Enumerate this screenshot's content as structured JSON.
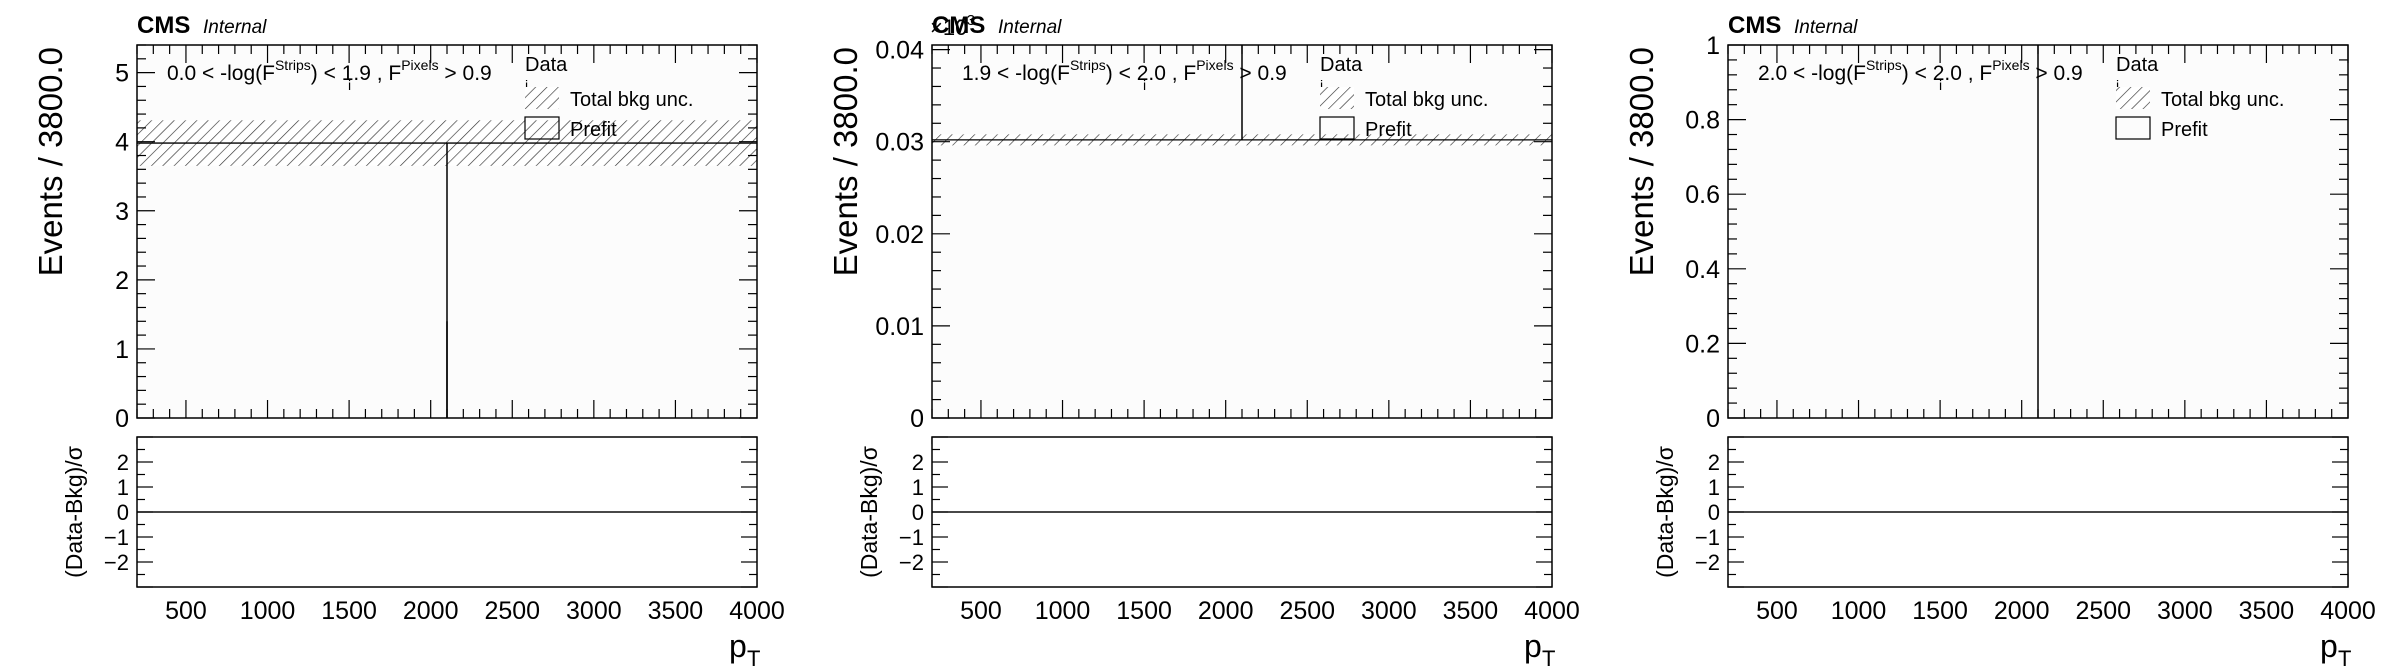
{
  "figure": {
    "ratio_ylabel": "(Data-Bkg)/σ",
    "ratio_ticks": [
      "2",
      "1",
      "0",
      "−1",
      "−2"
    ],
    "ratio_ylim": [
      -3,
      3
    ]
  },
  "chart_data": [
    {
      "type": "bar",
      "brand": "CMS",
      "status": "Internal",
      "xlabel": "p",
      "xlabel_sub": "T",
      "ylabel": "Events / 3800.0",
      "x_ticks": [
        "500",
        "1000",
        "1500",
        "2000",
        "2500",
        "3000",
        "3500",
        "4000"
      ],
      "y_ticks": [
        "0",
        "1",
        "2",
        "3",
        "4",
        "5"
      ],
      "y_exponent": "",
      "xlim": [
        200,
        4000
      ],
      "ylim": [
        0,
        5.4
      ],
      "category_label": {
        "pre": "0.0 < -log(F",
        "sup1": "Strips",
        "mid": ") < 1.9 , F",
        "sup2": "Pixels",
        "post": " > 0.9"
      },
      "legend": [
        "Data",
        "Total bkg unc.",
        "Prefit"
      ],
      "bins": [
        200,
        4000
      ],
      "background": [
        3.98
      ],
      "bkg_unc": [
        0.33
      ],
      "data": [
        {
          "x": 2100,
          "y": 0,
          "yerr": 3.98
        }
      ],
      "ratio": [
        0
      ]
    },
    {
      "type": "bar",
      "brand": "CMS",
      "status": "Internal",
      "xlabel": "p",
      "xlabel_sub": "T",
      "ylabel": "Events / 3800.0",
      "x_ticks": [
        "500",
        "1000",
        "1500",
        "2000",
        "2500",
        "3000",
        "3500",
        "4000"
      ],
      "y_ticks": [
        "0",
        "0.01",
        "0.02",
        "0.03",
        "0.04"
      ],
      "y_exponent": "×10",
      "y_exponent_power": "−3",
      "xlim": [
        200,
        4000
      ],
      "ylim": [
        0,
        0.0405
      ],
      "category_label": {
        "pre": "1.9 < -log(F",
        "sup1": "Strips",
        "mid": ") < 2.0 , F",
        "sup2": "Pixels",
        "post": " > 0.9"
      },
      "legend": [
        "Data",
        "Total bkg unc.",
        "Prefit"
      ],
      "bins": [
        200,
        4000
      ],
      "background": [
        0.0302
      ],
      "bkg_unc": [
        0.0006
      ],
      "data": [
        {
          "x": 2100,
          "y": 0.0302,
          "yerr": 0.0105
        }
      ],
      "ratio": [
        0
      ]
    },
    {
      "type": "bar",
      "brand": "CMS",
      "status": "Internal",
      "xlabel": "p",
      "xlabel_sub": "T",
      "ylabel": "Events / 3800.0",
      "x_ticks": [
        "500",
        "1000",
        "1500",
        "2000",
        "2500",
        "3000",
        "3500",
        "4000"
      ],
      "y_ticks": [
        "0",
        "0.2",
        "0.4",
        "0.6",
        "0.8",
        "1"
      ],
      "y_exponent": "",
      "xlim": [
        200,
        4000
      ],
      "ylim": [
        0,
        1
      ],
      "category_label": {
        "pre": "2.0 < -log(F",
        "sup1": "Strips",
        "mid": ") < 2.0 , F",
        "sup2": "Pixels",
        "post": " > 0.9"
      },
      "legend": [
        "Data",
        "Total bkg unc.",
        "Prefit"
      ],
      "bins": [
        200,
        4000
      ],
      "background": [
        0
      ],
      "bkg_unc": [
        0
      ],
      "data": [
        {
          "x": 2100,
          "y": 0,
          "yerr": 1
        }
      ],
      "ratio": [
        0
      ]
    }
  ]
}
